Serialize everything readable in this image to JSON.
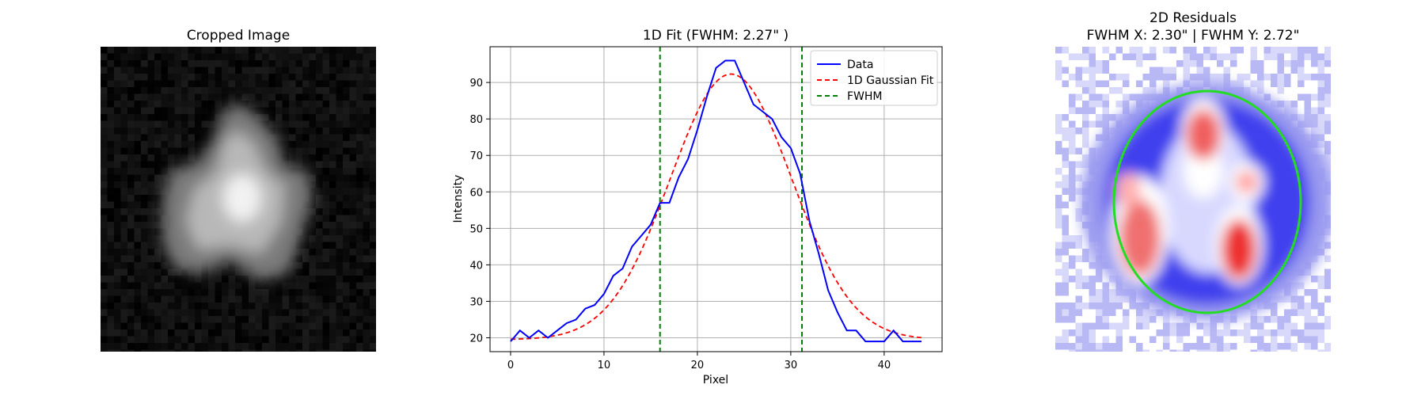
{
  "panels": {
    "left_title": "Cropped Image",
    "right_title_line1": "2D Residuals",
    "right_title_line2": "FWHM X: 2.30\"  |  FWHM Y: 2.72\""
  },
  "chart_data": [
    {
      "type": "heatmap",
      "title": "Cropped Image",
      "colormap": "gray",
      "grid": false,
      "axes_visible": false,
      "description_of_content": "bright star-shaped blob centered on dark noisy background"
    },
    {
      "type": "line",
      "title": "1D Fit (FWHM: 2.27\" )",
      "xlabel": "Pixel",
      "ylabel": "Intensity",
      "xlim": [
        -2.2,
        46.2
      ],
      "ylim": [
        16.2,
        99.8
      ],
      "xticks": [
        0,
        10,
        20,
        30,
        40
      ],
      "yticks": [
        20,
        30,
        40,
        50,
        60,
        70,
        80,
        90
      ],
      "grid": true,
      "legend_position": "top-right",
      "series": [
        {
          "name": "Data",
          "color": "#0000ff",
          "style": "solid",
          "x": [
            0,
            1,
            2,
            3,
            4,
            5,
            6,
            7,
            8,
            9,
            10,
            11,
            12,
            13,
            14,
            15,
            16,
            17,
            18,
            19,
            20,
            21,
            22,
            23,
            24,
            25,
            26,
            27,
            28,
            29,
            30,
            31,
            32,
            33,
            34,
            35,
            36,
            37,
            38,
            39,
            40,
            41,
            42,
            43,
            44
          ],
          "y": [
            19,
            22,
            20,
            22,
            20,
            22,
            24,
            25,
            28,
            29,
            32,
            37,
            39,
            45,
            48,
            51,
            57,
            57,
            64,
            69,
            77,
            86,
            94,
            96,
            96,
            90,
            84,
            82,
            80,
            75,
            72,
            65,
            52,
            43,
            33,
            27,
            22,
            22,
            19,
            19,
            19,
            22,
            19,
            19,
            19
          ]
        },
        {
          "name": "1D Gaussian Fit",
          "color": "#ff0000",
          "style": "dashed",
          "model": "gaussian",
          "amplitude": 72.8,
          "center": 23.6,
          "sigma": 6.5,
          "offset": 19.5,
          "x_range": [
            0,
            44
          ]
        },
        {
          "name": "FWHM",
          "color": "#008000",
          "style": "dashed",
          "vertical_lines_x": [
            16.0,
            31.2
          ]
        }
      ]
    },
    {
      "type": "heatmap",
      "title": "2D Residuals",
      "colormap": "bwr",
      "grid": false,
      "axes_visible": false,
      "fwhm_x": "2.30\"",
      "fwhm_y": "2.72\"",
      "ellipse_color": "#22dd22",
      "description_of_content": "blue/white/red residual map with red hot spots at upper center, left, and lower right, green FWHM ellipse overlaid"
    }
  ]
}
